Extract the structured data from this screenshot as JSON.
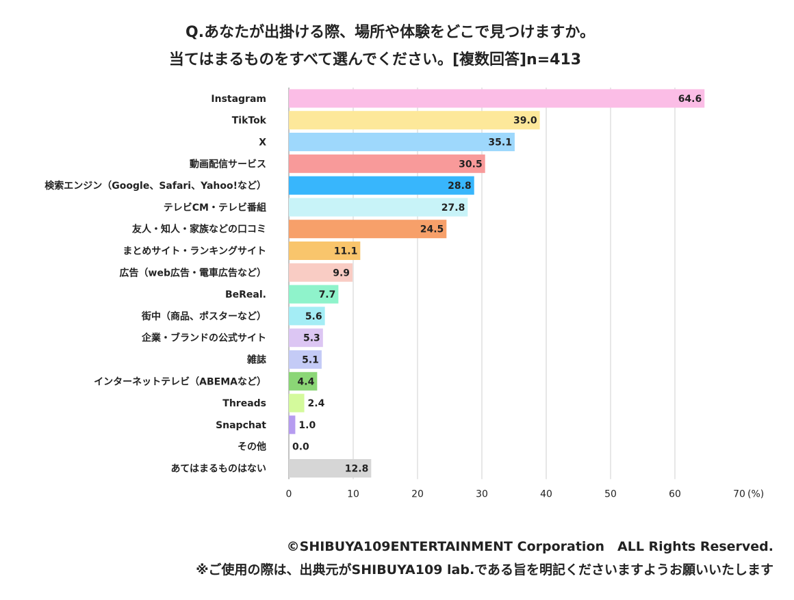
{
  "chart_data": {
    "type": "bar",
    "orientation": "horizontal",
    "title": "Q.あなたが出掛ける際、場所や体験をどこで見つけますか。",
    "subtitle": "当てはまるものをすべて選んでください。[複数回答]n=413",
    "unit_label": "(%)",
    "xlim": [
      0,
      70
    ],
    "xticks": [
      "0",
      "10",
      "20",
      "30",
      "40",
      "50",
      "60",
      "70"
    ],
    "grid": true,
    "categories": [
      "Instagram",
      "TikTok",
      "X",
      "動画配信サービス",
      "検索エンジン（Google、Safari、Yahoo!など）",
      "テレビCM・テレビ番組",
      "友人・知人・家族などの口コミ",
      "まとめサイト・ランキングサイト",
      "広告（web広告・電車広告など）",
      "BeReal.",
      "街中（商品、ポスターなど）",
      "企業・ブランドの公式サイト",
      "雑誌",
      "インターネットテレビ（ABEMAなど）",
      "Threads",
      "Snapchat",
      "その他",
      "あてはまるものはない"
    ],
    "values": [
      64.6,
      39.0,
      35.1,
      30.5,
      28.8,
      27.8,
      24.5,
      11.1,
      9.9,
      7.7,
      5.6,
      5.3,
      5.1,
      4.4,
      2.4,
      1.0,
      0.0,
      12.8
    ],
    "value_labels": [
      "64.6",
      "39.0",
      "35.1",
      "30.5",
      "28.8",
      "27.8",
      "24.5",
      "11.1",
      "9.9",
      "7.7",
      "5.6",
      "5.3",
      "5.1",
      "4.4",
      "2.4",
      "1.0",
      "0.0",
      "12.8"
    ],
    "colors": [
      "#fbbde6",
      "#fde89a",
      "#9ed8fc",
      "#f89a9a",
      "#38b6fc",
      "#c8f3f8",
      "#f7a06a",
      "#f9c56c",
      "#f9ccc4",
      "#8ff3cb",
      "#a4edf5",
      "#dcc6f3",
      "#c4cbf6",
      "#8bd676",
      "#d4fa9c",
      "#b69cf0",
      "#e0e0e0",
      "#d6d6d6"
    ]
  },
  "footer": {
    "copyright": "©SHIBUYA109ENTERTAINMENT Corporation　ALL Rights Reserved.",
    "note": "※ご使用の際は、出典元がSHIBUYA109 lab.である旨を明記くださいますようお願いいたします"
  }
}
